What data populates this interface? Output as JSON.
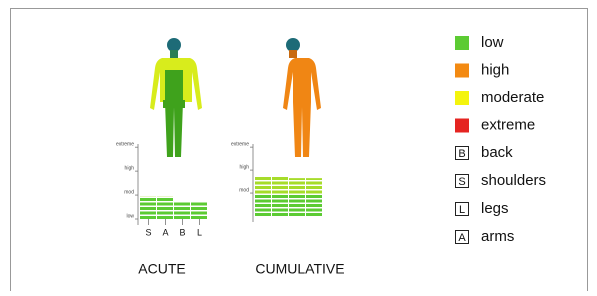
{
  "legend": [
    {
      "label": "low",
      "color": "#5ccb33"
    },
    {
      "label": "high",
      "color": "#f38a12"
    },
    {
      "label": "moderate",
      "color": "#f4f40d"
    },
    {
      "label": "extreme",
      "color": "#e52421"
    }
  ],
  "keys": [
    {
      "letter": "B",
      "label": "back"
    },
    {
      "letter": "S",
      "label": "shoulders"
    },
    {
      "letter": "L",
      "label": "legs"
    },
    {
      "letter": "A",
      "label": "arms"
    }
  ],
  "panels": [
    {
      "caption": "ACUTE",
      "yticks": [
        {
          "value": 0,
          "label": "low"
        },
        {
          "value": 1,
          "label": "mod"
        },
        {
          "value": 2,
          "label": "high"
        },
        {
          "value": 3,
          "label": "extreme"
        }
      ],
      "ylim": [
        0,
        3.05
      ],
      "categories": [
        "S",
        "A",
        "B",
        "L"
      ],
      "values": [
        0.95,
        0.95,
        0.7,
        0.7
      ]
    },
    {
      "caption": "CUMULATIVE",
      "yticks": [
        {
          "value": 1,
          "label": "mod"
        },
        {
          "value": 2,
          "label": "high"
        },
        {
          "value": 3,
          "label": "extreme"
        }
      ],
      "ylim": [
        0,
        3.05
      ],
      "categories": [
        null,
        null,
        null,
        null
      ],
      "values": [
        1.75,
        1.75,
        1.65,
        1.65
      ]
    }
  ]
}
